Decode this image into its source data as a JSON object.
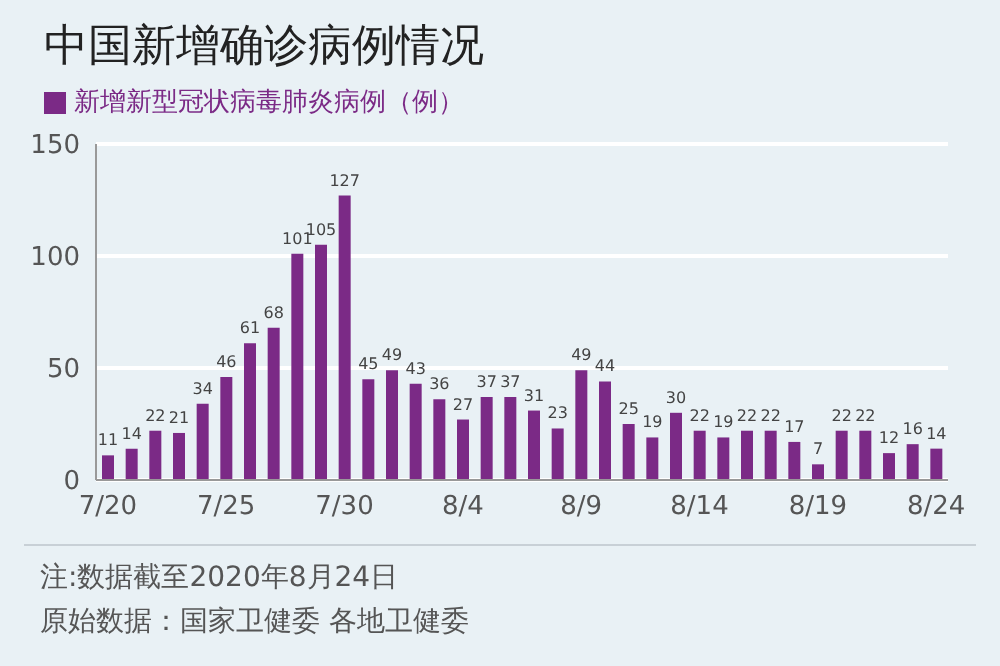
{
  "chart_data": {
    "type": "bar",
    "title": "中国新增确诊病例情况",
    "categories": [
      "7/20",
      null,
      null,
      null,
      null,
      "7/25",
      null,
      null,
      null,
      null,
      "7/30",
      null,
      null,
      null,
      null,
      "8/4",
      null,
      null,
      null,
      null,
      "8/9",
      null,
      null,
      null,
      null,
      "8/14",
      null,
      null,
      null,
      null,
      "8/19",
      null,
      null,
      null,
      null,
      "8/24"
    ],
    "series": [
      {
        "name": "新增新型冠状病毒肺炎病例（例）",
        "color": "#7b2a86",
        "values": [
          11,
          14,
          22,
          21,
          34,
          46,
          61,
          68,
          101,
          105,
          127,
          45,
          49,
          43,
          36,
          27,
          37,
          37,
          31,
          23,
          49,
          44,
          25,
          19,
          30,
          22,
          19,
          22,
          22,
          17,
          7,
          22,
          22,
          12,
          16,
          14
        ]
      }
    ],
    "ylim": [
      0,
      150
    ],
    "yticks": [
      0,
      50,
      100,
      150
    ],
    "grid": "y",
    "legend": "top left",
    "data_labels": true,
    "annotations": [
      "注:数据截至2020年8月24日",
      "原始数据：国家卫健委 各地卫健委"
    ]
  }
}
